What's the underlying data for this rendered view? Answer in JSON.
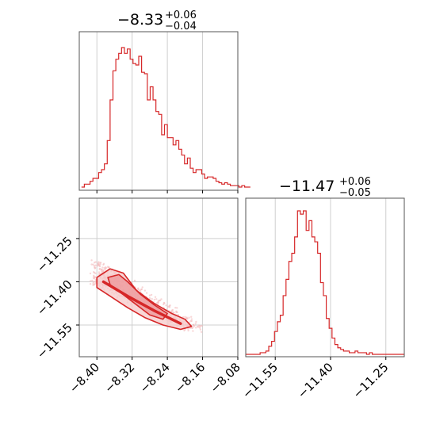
{
  "chart_data": [
    {
      "panel": "hist-x",
      "type": "histogram",
      "title": {
        "main": "−8.33",
        "upper": "+0.06",
        "lower": "−0.04"
      },
      "color": "#d62728",
      "xlim": [
        -8.44,
        -8.08
      ],
      "xticks": [
        -8.4,
        -8.32,
        -8.24,
        -8.16,
        -8.08
      ],
      "bin_edges_start": -8.435,
      "bin_width": 0.0065,
      "counts": [
        0,
        2,
        2,
        4,
        6,
        6,
        10,
        12,
        16,
        32,
        60,
        80,
        88,
        92,
        96,
        92,
        95,
        88,
        85,
        84,
        90,
        79,
        78,
        60,
        69,
        60,
        52,
        50,
        36,
        43,
        34,
        34,
        29,
        32,
        26,
        22,
        16,
        20,
        13,
        10,
        12,
        12,
        9,
        6,
        7,
        7,
        6,
        4,
        3,
        2,
        3,
        2,
        1,
        1,
        1,
        0,
        1,
        0,
        0
      ],
      "grid": true
    },
    {
      "panel": "hist-y",
      "type": "histogram",
      "title": {
        "main": "−11.47",
        "upper": "+0.06",
        "lower": "−0.05"
      },
      "color": "#d62728",
      "xlim": [
        -11.63,
        -11.2
      ],
      "xticks": [
        "−11.55",
        "−11.40",
        "−11.25"
      ],
      "xtick_values": [
        -11.55,
        -11.4,
        -11.25
      ],
      "bin_edges_start": -11.63,
      "bin_width": 0.0078,
      "counts": [
        0,
        0,
        0,
        0,
        0,
        1,
        1,
        2,
        5,
        8,
        14,
        20,
        24,
        36,
        46,
        57,
        62,
        72,
        88,
        86,
        88,
        76,
        82,
        72,
        69,
        62,
        44,
        36,
        22,
        16,
        10,
        6,
        4,
        3,
        2,
        2,
        1,
        1,
        2,
        1,
        1,
        1,
        0,
        1,
        0,
        0,
        0,
        0,
        0,
        0,
        0,
        0,
        0,
        0,
        0
      ],
      "grid": true
    },
    {
      "panel": "2d",
      "type": "scatter",
      "xlim": [
        -8.44,
        -8.08
      ],
      "ylim": [
        -11.66,
        -11.11
      ],
      "xticks": [
        "−8.40",
        "−8.32",
        "−8.24",
        "−8.16",
        "−8.08"
      ],
      "xtick_values": [
        -8.4,
        -8.32,
        -8.24,
        -8.16,
        -8.08
      ],
      "yticks": [
        "−11.25",
        "−11.40",
        "−11.55"
      ],
      "ytick_values": [
        -11.25,
        -11.4,
        -11.55
      ],
      "trend": {
        "x0": -8.4,
        "y0": -11.4,
        "x1": -8.17,
        "y1": -11.58
      },
      "contours": [
        {
          "level": "outer",
          "points": [
            [
              -8.4,
              -11.385
            ],
            [
              -8.37,
              -11.355
            ],
            [
              -8.34,
              -11.37
            ],
            [
              -8.31,
              -11.43
            ],
            [
              -8.27,
              -11.475
            ],
            [
              -8.23,
              -11.51
            ],
            [
              -8.2,
              -11.53
            ],
            [
              -8.185,
              -11.555
            ],
            [
              -8.21,
              -11.565
            ],
            [
              -8.25,
              -11.55
            ],
            [
              -8.29,
              -11.525
            ],
            [
              -8.33,
              -11.49
            ],
            [
              -8.37,
              -11.45
            ],
            [
              -8.4,
              -11.42
            ]
          ]
        },
        {
          "level": "inner",
          "points": [
            [
              -8.375,
              -11.385
            ],
            [
              -8.35,
              -11.375
            ],
            [
              -8.33,
              -11.4
            ],
            [
              -8.3,
              -11.445
            ],
            [
              -8.27,
              -11.48
            ],
            [
              -8.24,
              -11.51
            ],
            [
              -8.25,
              -11.53
            ],
            [
              -8.28,
              -11.515
            ],
            [
              -8.31,
              -11.48
            ],
            [
              -8.34,
              -11.445
            ],
            [
              -8.37,
              -11.41
            ]
          ]
        }
      ],
      "grid": true
    }
  ]
}
